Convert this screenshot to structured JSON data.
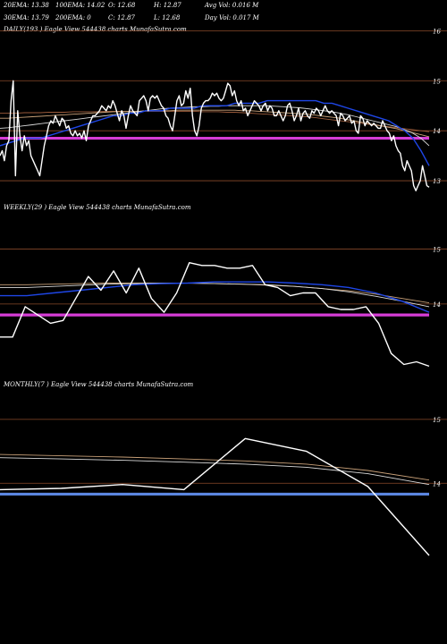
{
  "header": {
    "row1": [
      "20EMA: 13.38",
      "100EMA: 14.02",
      "O: 12.68",
      "H: 12.87",
      "Avg Vol: 0.016  M"
    ],
    "row2": [
      "30EMA: 13.79",
      "200EMA: 0",
      "C: 12.87",
      "L: 12.68",
      "Day Vol: 0.017 M"
    ]
  },
  "colors": {
    "background": "#000000",
    "price": "#ffffff",
    "ema_blue": "#1e46e6",
    "ema_white": "#d9d9d9",
    "ema_tan": "#c8a078",
    "ema_brown": "#9a5a3a",
    "magenta": "#d63cd6",
    "steel_blue": "#5b86e0",
    "grid": "#8a4a2a"
  },
  "chart_data": [
    {
      "type": "line",
      "title": "DAILY(193 ) Eagle  View  544438  charts MunafaSutra.com",
      "yticks": [
        16,
        15,
        14,
        13
      ],
      "ylim": [
        12.5,
        16.15
      ],
      "hline": 13.85,
      "price": [
        13.5,
        13.6,
        13.4,
        13.7,
        13.8,
        14.6,
        15,
        13.1,
        14.4,
        13.9,
        13.6,
        13.9,
        13.7,
        13.8,
        13.5,
        13.4,
        13.3,
        13.2,
        13.1,
        13.4,
        13.7,
        13.9,
        14.1,
        14.2,
        14.15,
        14.3,
        14.2,
        14.1,
        14.25,
        14.2,
        14.05,
        14.1,
        13.95,
        13.9,
        14.0,
        13.9,
        13.95,
        13.85,
        14.0,
        13.8,
        14.1,
        14.2,
        14.3,
        14.3,
        14.35,
        14.4,
        14.5,
        14.45,
        14.4,
        14.5,
        14.45,
        14.6,
        14.5,
        14.35,
        14.2,
        14.4,
        14.3,
        14.05,
        14.3,
        14.5,
        14.4,
        14.35,
        14.3,
        14.6,
        14.65,
        14.7,
        14.6,
        14.4,
        14.65,
        14.7,
        14.65,
        14.7,
        14.6,
        14.5,
        14.45,
        14.3,
        14.25,
        14.1,
        14.0,
        14.3,
        14.6,
        14.7,
        14.5,
        14.55,
        14.8,
        14.65,
        14.85,
        14.3,
        14.0,
        13.9,
        14.1,
        14.45,
        14.55,
        14.6,
        14.6,
        14.65,
        14.75,
        14.7,
        14.75,
        14.65,
        14.6,
        14.65,
        14.8,
        14.95,
        14.9,
        14.7,
        14.8,
        14.6,
        14.5,
        14.6,
        14.4,
        14.45,
        14.3,
        14.4,
        14.5,
        14.6,
        14.55,
        14.5,
        14.4,
        14.5,
        14.55,
        14.4,
        14.5,
        14.45,
        14.3,
        14.3,
        14.4,
        14.3,
        14.2,
        14.3,
        14.5,
        14.55,
        14.4,
        14.2,
        14.3,
        14.45,
        14.2,
        14.35,
        14.4,
        14.3,
        14.25,
        14.4,
        14.35,
        14.45,
        14.4,
        14.3,
        14.4,
        14.5,
        14.4,
        14.35,
        14.4,
        14.35,
        14.3,
        14.1,
        14.35,
        14.3,
        14.2,
        14.25,
        14.3,
        14.15,
        14.2,
        14.0,
        13.95,
        14.3,
        14.25,
        14.1,
        14.2,
        14.15,
        14.1,
        14.15,
        14.1,
        14.05,
        14.05,
        14.2,
        14.1,
        14.0,
        13.95,
        13.8,
        13.9,
        13.7,
        13.6,
        13.55,
        13.3,
        13.2,
        13.4,
        13.3,
        13.2,
        12.9,
        12.8,
        12.9,
        13.0,
        13.3,
        13.1,
        12.9,
        12.87
      ],
      "ema_blue": [
        13.7,
        13.75,
        13.8,
        13.85,
        13.85,
        13.85,
        13.9,
        13.95,
        14.0,
        14.05,
        14.1,
        14.15,
        14.2,
        14.25,
        14.3,
        14.3,
        14.35,
        14.35,
        14.4,
        14.4,
        14.4,
        14.45,
        14.45,
        14.45,
        14.45,
        14.5,
        14.5,
        14.5,
        14.5,
        14.55,
        14.55,
        14.55,
        14.55,
        14.6,
        14.6,
        14.6,
        14.6,
        14.6,
        14.6,
        14.6,
        14.55,
        14.55,
        14.5,
        14.45,
        14.4,
        14.35,
        14.3,
        14.25,
        14.2,
        14.1,
        14.0,
        13.85,
        13.6,
        13.3
      ],
      "ema_white": [
        14.05,
        14.06,
        14.08,
        14.1,
        14.12,
        14.14,
        14.16,
        14.18,
        14.2,
        14.22,
        14.24,
        14.26,
        14.28,
        14.3,
        14.32,
        14.34,
        14.36,
        14.38,
        14.4,
        14.42,
        14.44,
        14.45,
        14.46,
        14.47,
        14.48,
        14.48,
        14.49,
        14.49,
        14.5,
        14.5,
        14.5,
        14.5,
        14.5,
        14.5,
        14.49,
        14.48,
        14.47,
        14.46,
        14.44,
        14.42,
        14.4,
        14.38,
        14.35,
        14.32,
        14.28,
        14.24,
        14.2,
        14.16,
        14.12,
        14.08,
        14.02,
        13.95,
        13.85,
        13.7
      ],
      "ema_tan": [
        14.25,
        14.25,
        14.26,
        14.27,
        14.28,
        14.29,
        14.3,
        14.31,
        14.32,
        14.33,
        14.34,
        14.35,
        14.36,
        14.37,
        14.38,
        14.38,
        14.39,
        14.39,
        14.4,
        14.4,
        14.4,
        14.4,
        14.41,
        14.41,
        14.41,
        14.41,
        14.41,
        14.41,
        14.41,
        14.41,
        14.4,
        14.4,
        14.39,
        14.38,
        14.37,
        14.36,
        14.35,
        14.34,
        14.33,
        14.31,
        14.29,
        14.27,
        14.25,
        14.22,
        14.19,
        14.16,
        14.13,
        14.1,
        14.07,
        14.04,
        14.0,
        13.96,
        13.92,
        13.88
      ],
      "ema_brown": [
        14.35,
        14.35,
        14.35,
        14.36,
        14.36,
        14.36,
        14.37,
        14.37,
        14.37,
        14.38,
        14.38,
        14.38,
        14.38,
        14.39,
        14.39,
        14.39,
        14.39,
        14.39,
        14.39,
        14.39,
        14.39,
        14.39,
        14.39,
        14.39,
        14.39,
        14.38,
        14.38,
        14.38,
        14.37,
        14.37,
        14.36,
        14.35,
        14.34,
        14.33,
        14.32,
        14.31,
        14.3,
        14.29,
        14.28,
        14.26,
        14.24,
        14.22,
        14.2,
        14.18,
        14.16,
        14.14,
        14.12,
        14.1,
        14.08,
        14.06,
        14.04,
        14.02,
        14.0,
        13.98
      ]
    },
    {
      "type": "line",
      "title": "WEEKLY(29 ) Eagle  View  544438  charts MunafaSutra.com",
      "yticks": [
        15,
        14
      ],
      "ylim": [
        12.6,
        15.85
      ],
      "hline": 13.8,
      "price": [
        13.4,
        13.4,
        13.95,
        13.8,
        13.65,
        13.7,
        14.1,
        14.5,
        14.25,
        14.6,
        14.2,
        14.65,
        14.1,
        13.85,
        14.2,
        14.75,
        14.7,
        14.7,
        14.65,
        14.65,
        14.7,
        14.35,
        14.3,
        14.15,
        14.2,
        14.2,
        13.95,
        13.9,
        13.9,
        13.95,
        13.65,
        13.1,
        12.9,
        12.95,
        12.87
      ],
      "ema_blue": [
        14.15,
        14.15,
        14.2,
        14.25,
        14.3,
        14.35,
        14.37,
        14.38,
        14.4,
        14.4,
        14.4,
        14.38,
        14.35,
        14.3,
        14.2,
        14.05,
        13.85
      ],
      "ema_white": [
        14.3,
        14.3,
        14.32,
        14.34,
        14.36,
        14.37,
        14.38,
        14.38,
        14.37,
        14.36,
        14.35,
        14.32,
        14.28,
        14.22,
        14.14,
        14.05,
        13.95
      ],
      "ema_tan": [
        14.35,
        14.35,
        14.36,
        14.37,
        14.38,
        14.38,
        14.38,
        14.38,
        14.37,
        14.36,
        14.34,
        14.32,
        14.28,
        14.24,
        14.18,
        14.1,
        14.02
      ]
    },
    {
      "type": "line",
      "title": "MONTHLY(7 ) Eagle  View  544438  charts MunafaSutra.com",
      "yticks": [
        15,
        14
      ],
      "ylim": [
        12.8,
        15.6
      ],
      "hline": 13.83,
      "price": [
        13.9,
        13.92,
        13.98,
        13.9,
        14.7,
        14.5,
        13.95,
        12.87
      ],
      "ema_white": [
        14.4,
        14.38,
        14.36,
        14.33,
        14.3,
        14.25,
        14.15,
        13.98
      ],
      "ema_tan": [
        14.45,
        14.43,
        14.41,
        14.38,
        14.35,
        14.3,
        14.2,
        14.05
      ]
    }
  ]
}
